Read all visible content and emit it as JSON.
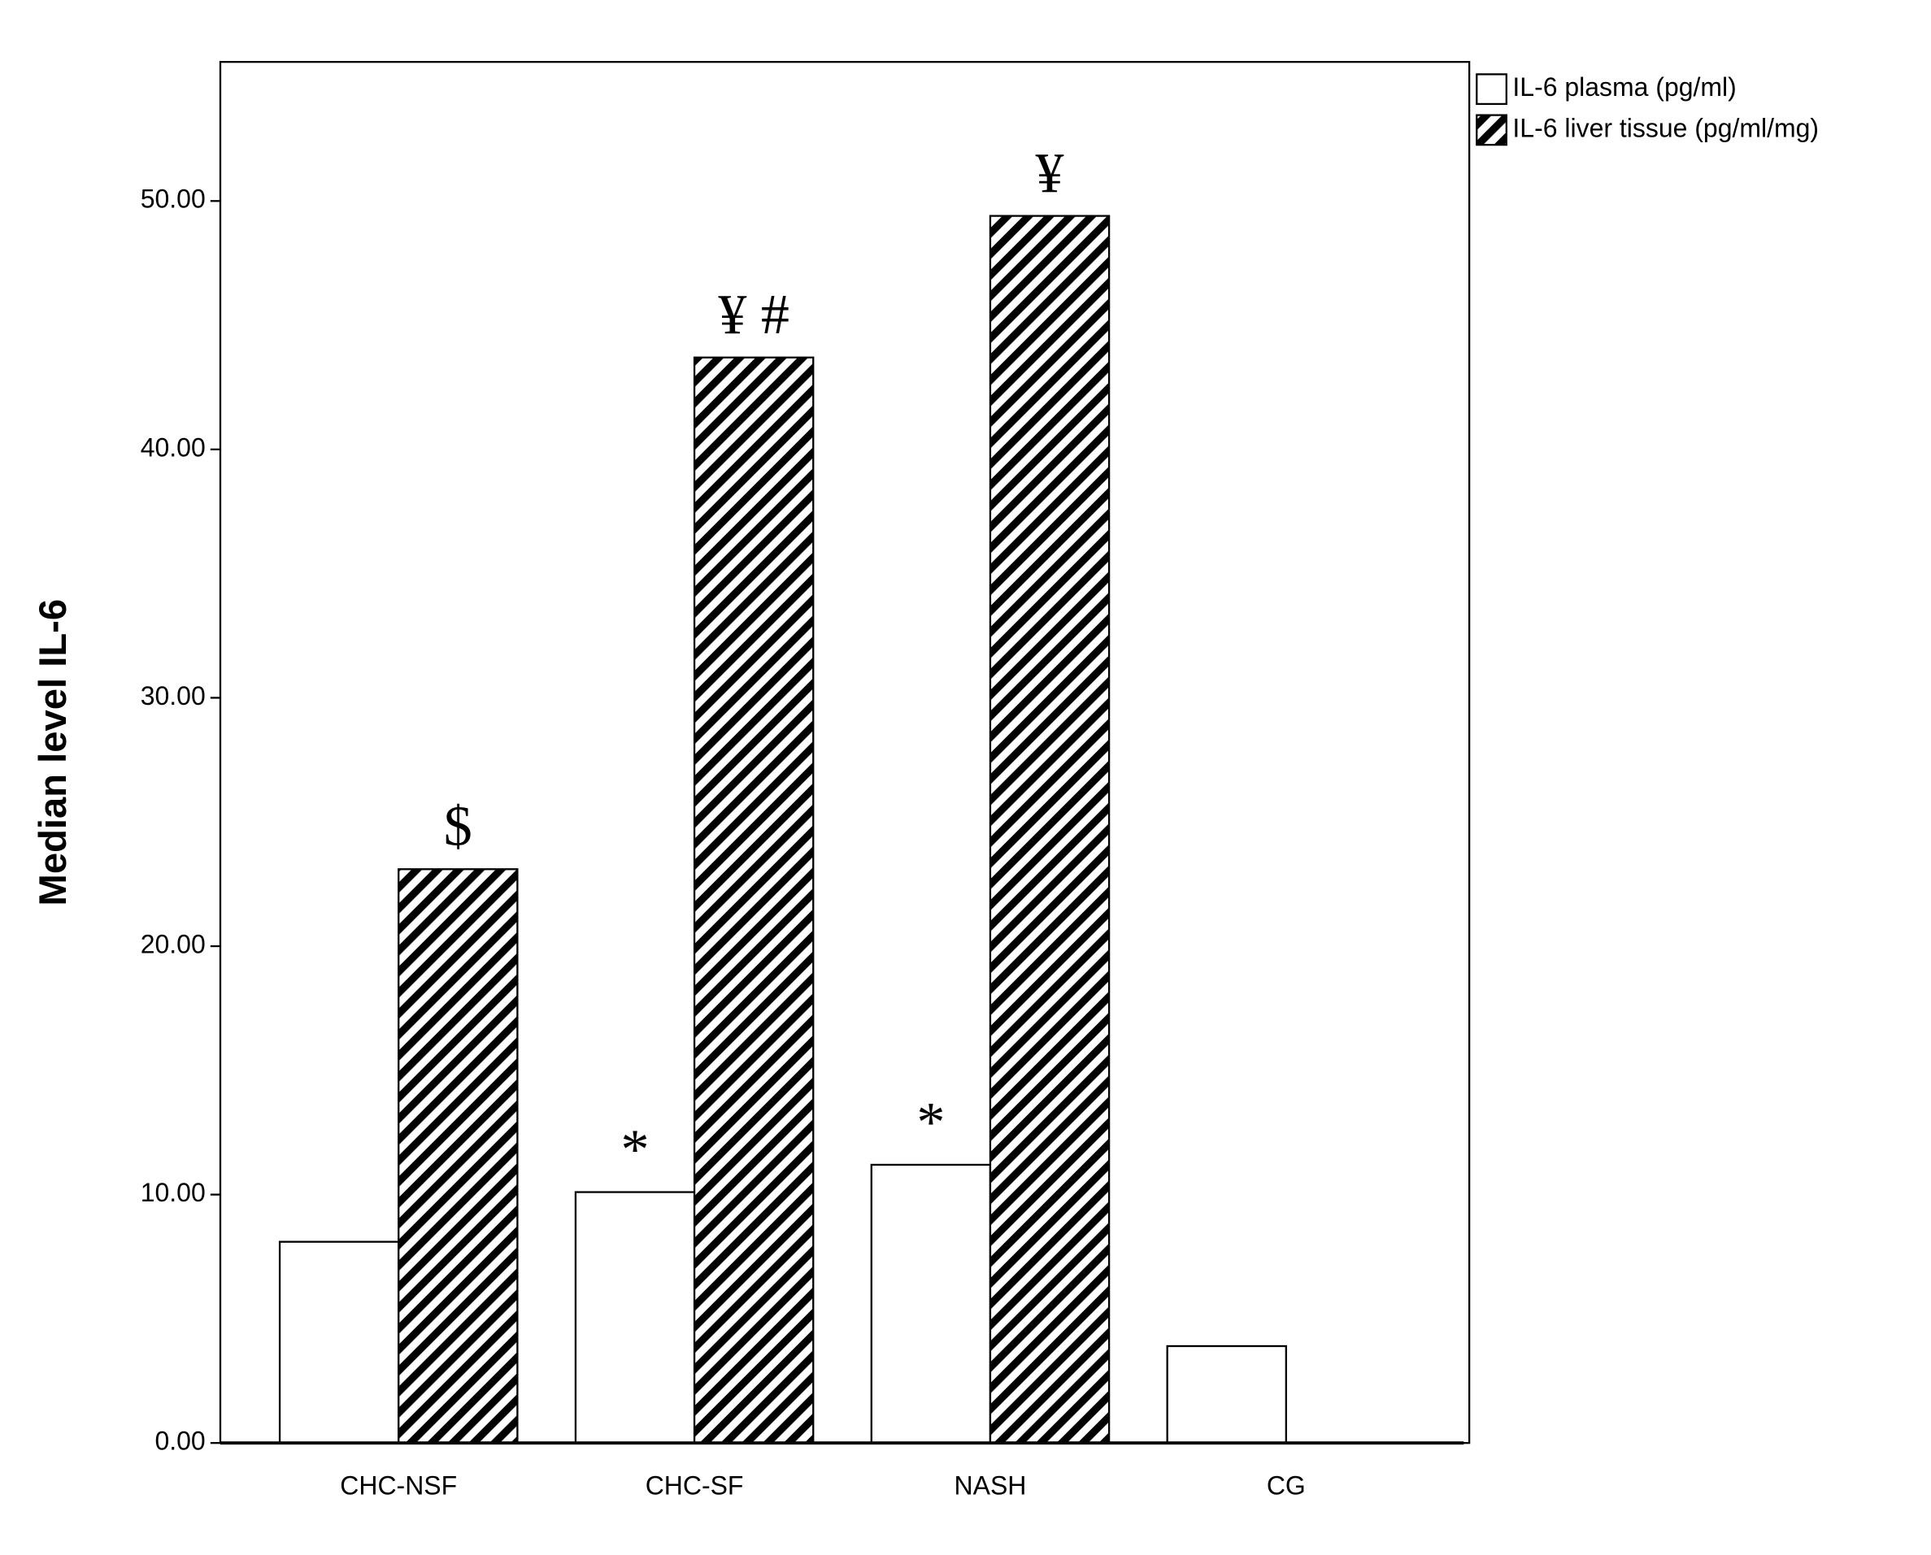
{
  "chart_data": {
    "type": "bar",
    "y_label": "Median level IL-6",
    "categories": [
      "CHC-NSF",
      "CHC-SF",
      "NASH",
      "CG"
    ],
    "series": [
      {
        "name": "IL-6 plasma (pg/ml)",
        "color": "#ffffff",
        "pattern": "solid",
        "values": [
          8.1,
          10.1,
          11.2,
          3.9
        ],
        "annotations": [
          null,
          "*",
          "*",
          null
        ]
      },
      {
        "name": "IL-6 liver tissue (pg/ml/mg)",
        "color": "#000000",
        "pattern": "hatch",
        "values": [
          23.1,
          43.7,
          49.4,
          0
        ],
        "annotations": [
          "$",
          "¥ #",
          "¥",
          null
        ]
      }
    ],
    "ylim": [
      0,
      55.6
    ],
    "yticks": [
      {
        "value": 0,
        "label": "0.00"
      },
      {
        "value": 10,
        "label": "10.00"
      },
      {
        "value": 20,
        "label": "20.00"
      },
      {
        "value": 30,
        "label": "30.00"
      },
      {
        "value": 40,
        "label": "40.00"
      },
      {
        "value": 50,
        "label": "50.00"
      }
    ],
    "grid": false,
    "legend": "top-right-outside"
  }
}
